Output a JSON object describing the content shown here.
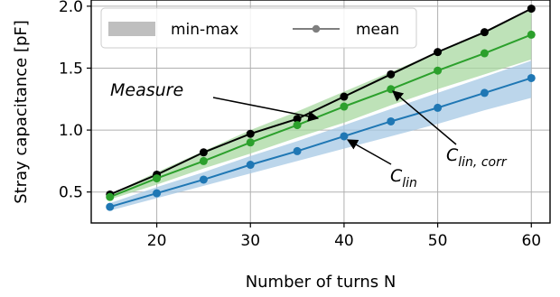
{
  "chart_data": {
    "type": "line",
    "xlabel": "Number of turns N",
    "ylabel": "Stray capacitance [pF]",
    "xlim": [
      13,
      62
    ],
    "ylim": [
      0.25,
      2.05
    ],
    "xticks": [
      20,
      30,
      40,
      50,
      60
    ],
    "xtick_labels": [
      "20",
      "30",
      "40",
      "50",
      "60"
    ],
    "yticks": [
      0.5,
      1.0,
      1.5,
      2.0
    ],
    "ytick_labels": [
      "0.5",
      "1.0",
      "1.5",
      "2.0"
    ],
    "grid": true,
    "legend_position": "upper-left",
    "legend": [
      {
        "label": "min-max",
        "kind": "band",
        "color": "#bfbfbf"
      },
      {
        "label": "mean",
        "kind": "line-marker",
        "color": "#7f7f7f"
      }
    ],
    "x": [
      15,
      20,
      25,
      30,
      35,
      40,
      45,
      50,
      55,
      60
    ],
    "series": [
      {
        "name": "Measure",
        "color": "#000000",
        "values": [
          0.48,
          0.64,
          0.82,
          0.97,
          1.09,
          1.27,
          1.45,
          1.63,
          1.79,
          1.98
        ]
      },
      {
        "name": "C_lin,corr",
        "color": "#2ca02c",
        "band_color": "#a8d8a0",
        "values": [
          0.46,
          0.61,
          0.75,
          0.9,
          1.04,
          1.19,
          1.33,
          1.48,
          1.62,
          1.77
        ],
        "band_low": [
          0.44,
          0.56,
          0.69,
          0.81,
          0.94,
          1.06,
          1.2,
          1.33,
          1.45,
          1.57
        ],
        "band_high": [
          0.48,
          0.66,
          0.83,
          1.0,
          1.15,
          1.31,
          1.47,
          1.63,
          1.79,
          1.97
        ]
      },
      {
        "name": "C_lin",
        "color": "#1f77b4",
        "band_color": "#a6c8e4",
        "values": [
          0.38,
          0.49,
          0.6,
          0.72,
          0.83,
          0.95,
          1.07,
          1.18,
          1.3,
          1.42
        ],
        "band_low": [
          0.35,
          0.45,
          0.55,
          0.65,
          0.75,
          0.85,
          0.95,
          1.05,
          1.16,
          1.26
        ],
        "band_high": [
          0.41,
          0.54,
          0.66,
          0.79,
          0.91,
          1.04,
          1.17,
          1.3,
          1.43,
          1.56
        ]
      }
    ],
    "annotations": [
      {
        "base": "Measure",
        "sub": "",
        "target_x": 35,
        "target_y": 1.09
      },
      {
        "base": "C",
        "sub": "lin, corr",
        "target_x": 45,
        "target_y": 1.33
      },
      {
        "base": "C",
        "sub": "lin",
        "target_x": 40,
        "target_y": 0.95
      }
    ]
  }
}
